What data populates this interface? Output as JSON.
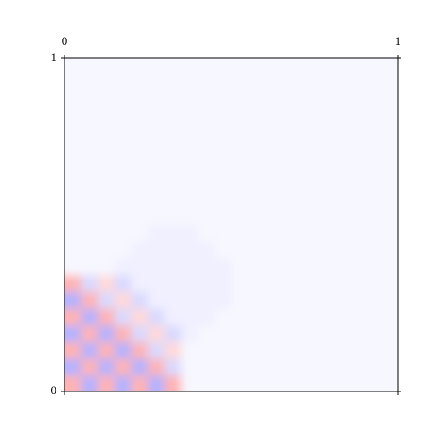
{
  "chart_data": {
    "type": "heatmap",
    "xlim": [
      0,
      1
    ],
    "ylim": [
      0,
      1
    ],
    "xticks": [
      0,
      1
    ],
    "yticks": [
      0,
      1
    ],
    "xaxis_position": "top",
    "colormap": "bwr",
    "vlim": [
      -1,
      1
    ],
    "smooth": true,
    "z": [
      [
        0.3,
        -0.3,
        0.3,
        -0.3,
        0.3,
        -0.3,
        0.3,
        -0.03,
        -0.03,
        -0.03,
        -0.03,
        -0.03,
        -0.03,
        -0.03,
        -0.03,
        -0.03,
        -0.03,
        -0.03,
        -0.03,
        -0.03
      ],
      [
        -0.3,
        0.3,
        -0.3,
        0.3,
        -0.3,
        0.3,
        -0.15,
        -0.03,
        -0.03,
        -0.03,
        -0.03,
        -0.03,
        -0.03,
        -0.03,
        -0.03,
        -0.03,
        -0.03,
        -0.03,
        -0.03,
        -0.03
      ],
      [
        0.3,
        -0.3,
        0.3,
        -0.3,
        0.3,
        -0.15,
        0.15,
        -0.03,
        -0.03,
        -0.03,
        -0.03,
        -0.03,
        -0.03,
        -0.03,
        -0.03,
        -0.03,
        -0.03,
        -0.03,
        -0.03,
        -0.03
      ],
      [
        -0.3,
        0.3,
        -0.3,
        0.3,
        -0.15,
        0.15,
        -0.15,
        -0.06,
        -0.03,
        -0.03,
        -0.03,
        -0.03,
        -0.03,
        -0.03,
        -0.03,
        -0.03,
        -0.03,
        -0.03,
        -0.03,
        -0.03
      ],
      [
        0.3,
        -0.3,
        0.3,
        -0.15,
        0.15,
        -0.15,
        -0.06,
        -0.06,
        -0.06,
        -0.03,
        -0.03,
        -0.03,
        -0.03,
        -0.03,
        -0.03,
        -0.03,
        -0.03,
        -0.03,
        -0.03,
        -0.03
      ],
      [
        -0.3,
        0.3,
        -0.15,
        0.15,
        -0.15,
        -0.06,
        -0.06,
        -0.06,
        -0.06,
        -0.06,
        -0.03,
        -0.03,
        -0.03,
        -0.03,
        -0.03,
        -0.03,
        -0.03,
        -0.03,
        -0.03,
        -0.03
      ],
      [
        0.3,
        -0.15,
        0.15,
        -0.15,
        -0.06,
        -0.06,
        -0.06,
        -0.06,
        -0.06,
        -0.06,
        -0.03,
        -0.03,
        -0.03,
        -0.03,
        -0.03,
        -0.03,
        -0.03,
        -0.03,
        -0.03,
        -0.03
      ],
      [
        -0.03,
        -0.03,
        -0.03,
        -0.06,
        -0.06,
        -0.06,
        -0.06,
        -0.06,
        -0.06,
        -0.06,
        -0.03,
        -0.03,
        -0.03,
        -0.03,
        -0.03,
        -0.03,
        -0.03,
        -0.03,
        -0.03,
        -0.03
      ],
      [
        -0.03,
        -0.03,
        -0.03,
        -0.03,
        -0.06,
        -0.06,
        -0.06,
        -0.06,
        -0.06,
        -0.03,
        -0.03,
        -0.03,
        -0.03,
        -0.03,
        -0.03,
        -0.03,
        -0.03,
        -0.03,
        -0.03,
        -0.03
      ],
      [
        -0.03,
        -0.03,
        -0.03,
        -0.03,
        -0.03,
        -0.06,
        -0.06,
        -0.06,
        -0.03,
        -0.03,
        -0.03,
        -0.03,
        -0.03,
        -0.03,
        -0.03,
        -0.03,
        -0.03,
        -0.03,
        -0.03,
        -0.03
      ],
      [
        -0.03,
        -0.03,
        -0.03,
        -0.03,
        -0.03,
        -0.03,
        -0.03,
        -0.03,
        -0.03,
        -0.03,
        -0.03,
        -0.03,
        -0.03,
        -0.03,
        -0.03,
        -0.03,
        -0.03,
        -0.03,
        -0.03,
        -0.03
      ],
      [
        -0.03,
        -0.03,
        -0.03,
        -0.03,
        -0.03,
        -0.03,
        -0.03,
        -0.03,
        -0.03,
        -0.03,
        -0.03,
        -0.03,
        -0.03,
        -0.03,
        -0.03,
        -0.03,
        -0.03,
        -0.03,
        -0.03,
        -0.03
      ],
      [
        -0.03,
        -0.03,
        -0.03,
        -0.03,
        -0.03,
        -0.03,
        -0.03,
        -0.03,
        -0.03,
        -0.03,
        -0.03,
        -0.03,
        -0.03,
        -0.03,
        -0.03,
        -0.03,
        -0.03,
        -0.03,
        -0.03,
        -0.03
      ],
      [
        -0.03,
        -0.03,
        -0.03,
        -0.03,
        -0.03,
        -0.03,
        -0.03,
        -0.03,
        -0.03,
        -0.03,
        -0.03,
        -0.03,
        -0.03,
        -0.03,
        -0.03,
        -0.03,
        -0.03,
        -0.03,
        -0.03,
        -0.03
      ],
      [
        -0.03,
        -0.03,
        -0.03,
        -0.03,
        -0.03,
        -0.03,
        -0.03,
        -0.03,
        -0.03,
        -0.03,
        -0.03,
        -0.03,
        -0.03,
        -0.03,
        -0.03,
        -0.03,
        -0.03,
        -0.03,
        -0.03,
        -0.03
      ],
      [
        -0.03,
        -0.03,
        -0.03,
        -0.03,
        -0.03,
        -0.03,
        -0.03,
        -0.03,
        -0.03,
        -0.03,
        -0.03,
        -0.03,
        -0.03,
        -0.03,
        -0.03,
        -0.03,
        -0.03,
        -0.03,
        -0.03,
        -0.03
      ],
      [
        -0.03,
        -0.03,
        -0.03,
        -0.03,
        -0.03,
        -0.03,
        -0.03,
        -0.03,
        -0.03,
        -0.03,
        -0.03,
        -0.03,
        -0.03,
        -0.03,
        -0.03,
        -0.03,
        -0.03,
        -0.03,
        -0.03,
        -0.03
      ],
      [
        -0.03,
        -0.03,
        -0.03,
        -0.03,
        -0.03,
        -0.03,
        -0.03,
        -0.03,
        -0.03,
        -0.03,
        -0.03,
        -0.03,
        -0.03,
        -0.03,
        -0.03,
        -0.03,
        -0.03,
        -0.03,
        -0.03,
        -0.03
      ],
      [
        -0.03,
        -0.03,
        -0.03,
        -0.03,
        -0.03,
        -0.03,
        -0.03,
        -0.03,
        -0.03,
        -0.03,
        -0.03,
        -0.03,
        -0.03,
        -0.03,
        -0.03,
        -0.03,
        -0.03,
        -0.03,
        -0.03,
        -0.03
      ],
      [
        -0.03,
        -0.03,
        -0.03,
        -0.03,
        -0.03,
        -0.03,
        -0.03,
        -0.03,
        -0.03,
        -0.03,
        -0.03,
        -0.03,
        -0.03,
        -0.03,
        -0.03,
        -0.03,
        -0.03,
        -0.03,
        -0.03,
        -0.03
      ]
    ]
  }
}
